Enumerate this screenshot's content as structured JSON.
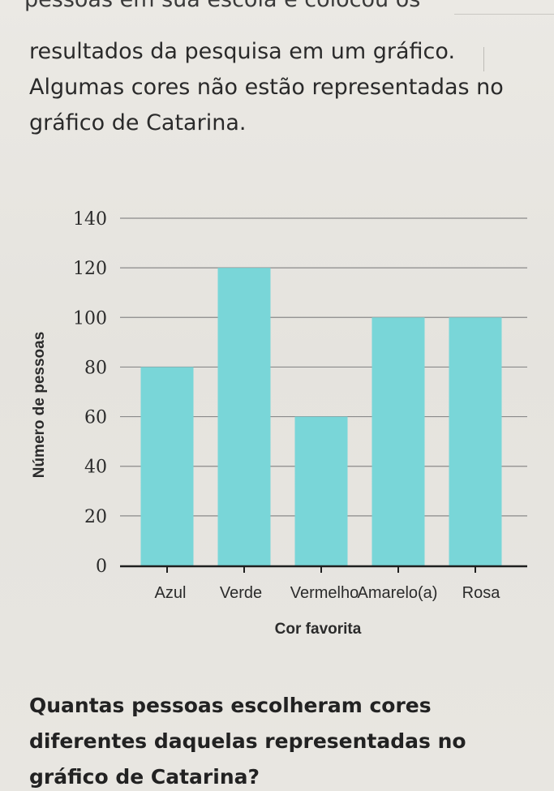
{
  "text": {
    "cut_line": "pessoas em sua escola e colocou os",
    "paragraph_lines": [
      "resultados da pesquisa em um gráfico.",
      "Algumas cores não estão representadas no",
      "gráfico de Catarina."
    ],
    "question_lines": [
      "Quantas pessoas escolheram cores",
      "diferentes daquelas representadas no",
      "gráfico de Catarina?"
    ]
  },
  "chart_data": {
    "type": "bar",
    "categories": [
      "Azul",
      "Verde",
      "Vermelho",
      "Amarelo(a)",
      "Rosa"
    ],
    "values": [
      80,
      120,
      60,
      100,
      100
    ],
    "xlabel": "Cor favorita",
    "ylabel": "Número de pessoas",
    "ylim": [
      0,
      140
    ],
    "yticks": [
      0,
      20,
      40,
      60,
      80,
      100,
      120,
      140
    ],
    "grid": true,
    "bar_color": "#79d6d8",
    "grid_color": "#8a8a8a"
  }
}
